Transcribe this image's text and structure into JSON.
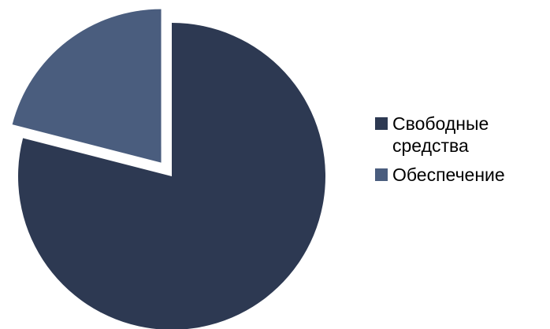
{
  "chart_data": {
    "type": "pie",
    "slices": [
      {
        "label": "Свободные средства",
        "value": 79,
        "color": "#2d3952",
        "exploded": false
      },
      {
        "label": "Обеспечение",
        "value": 21,
        "color": "#4a5d7e",
        "exploded": true
      }
    ],
    "start_angle_deg": 0,
    "direction": "clockwise",
    "legend_position": "right"
  }
}
